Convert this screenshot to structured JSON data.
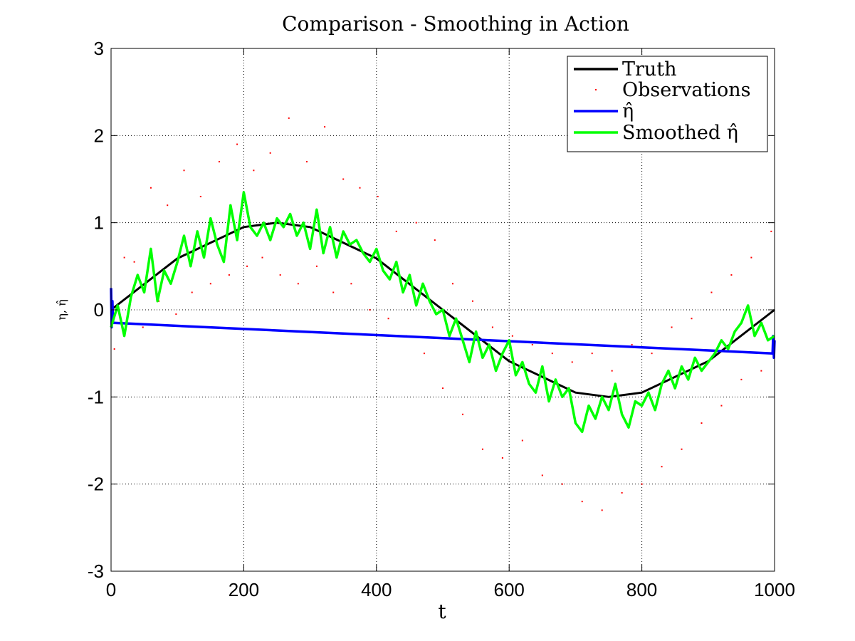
{
  "chart_data": {
    "type": "line",
    "title": "Comparison - Smoothing in Action",
    "xlabel": "t",
    "ylabel": "η, η̂",
    "xlim": [
      0,
      1000
    ],
    "ylim": [
      -3,
      3
    ],
    "xticks": [
      "0",
      "200",
      "400",
      "600",
      "800",
      "1000"
    ],
    "yticks": [
      "-3",
      "-2",
      "-1",
      "0",
      "1",
      "2",
      "3"
    ],
    "grid": true,
    "legend_position": "top-right",
    "series": [
      {
        "name": "Truth",
        "color": "#000000",
        "style": "line",
        "x": [
          0,
          100,
          200,
          250,
          300,
          400,
          500,
          600,
          700,
          750,
          800,
          900,
          1000
        ],
        "y": [
          0.0,
          0.59,
          0.95,
          1.0,
          0.95,
          0.59,
          0.0,
          -0.59,
          -0.95,
          -1.0,
          -0.95,
          -0.59,
          0.0
        ]
      },
      {
        "name": "Observations",
        "color": "#ff0000",
        "style": "dots",
        "x": [
          5,
          20,
          35,
          48,
          60,
          72,
          85,
          98,
          110,
          122,
          135,
          150,
          163,
          178,
          190,
          205,
          215,
          228,
          240,
          255,
          268,
          282,
          295,
          310,
          322,
          335,
          350,
          362,
          375,
          390,
          402,
          418,
          430,
          445,
          460,
          472,
          488,
          500,
          515,
          530,
          545,
          560,
          575,
          590,
          605,
          620,
          635,
          650,
          665,
          680,
          695,
          710,
          725,
          740,
          755,
          770,
          785,
          800,
          815,
          830,
          845,
          860,
          875,
          890,
          905,
          920,
          935,
          950,
          965,
          980,
          995
        ],
        "y": [
          -0.45,
          0.6,
          0.55,
          -0.2,
          1.4,
          0.1,
          1.2,
          -0.05,
          1.6,
          0.2,
          1.3,
          0.3,
          1.7,
          0.4,
          1.9,
          0.5,
          1.6,
          0.6,
          1.8,
          0.4,
          2.2,
          0.3,
          1.7,
          0.5,
          2.1,
          0.2,
          1.5,
          0.3,
          1.4,
          0.0,
          1.3,
          -0.1,
          0.9,
          -0.3,
          1.0,
          -0.5,
          0.8,
          -0.9,
          0.3,
          -1.2,
          0.1,
          -1.6,
          -0.2,
          -1.7,
          -0.3,
          -1.5,
          -0.4,
          -1.9,
          -0.5,
          -2.0,
          -0.6,
          -2.2,
          -0.5,
          -2.3,
          -0.7,
          -2.1,
          -0.4,
          -2.0,
          -0.5,
          -1.8,
          -0.2,
          -1.6,
          -0.1,
          -1.3,
          0.2,
          -1.1,
          0.4,
          -0.8,
          0.6,
          -0.7,
          0.9
        ]
      },
      {
        "name": "η̂",
        "color": "#0000ff",
        "style": "line",
        "x": [
          0,
          1,
          2,
          3,
          997,
          998,
          999,
          1000
        ],
        "y": [
          0.25,
          -0.2,
          0.1,
          -0.15,
          -0.5,
          -0.3,
          -0.55,
          -0.35
        ]
      },
      {
        "name": "Smoothed η̂",
        "color": "#00ff00",
        "style": "line",
        "x": [
          0,
          10,
          20,
          30,
          40,
          50,
          60,
          70,
          80,
          90,
          100,
          110,
          120,
          130,
          140,
          150,
          160,
          170,
          180,
          190,
          200,
          210,
          220,
          230,
          240,
          250,
          260,
          270,
          280,
          290,
          300,
          310,
          320,
          330,
          340,
          350,
          360,
          370,
          380,
          390,
          400,
          410,
          420,
          430,
          440,
          450,
          460,
          470,
          480,
          490,
          500,
          510,
          520,
          530,
          540,
          550,
          560,
          570,
          580,
          590,
          600,
          610,
          620,
          630,
          640,
          650,
          660,
          670,
          680,
          690,
          700,
          710,
          720,
          730,
          740,
          750,
          760,
          770,
          780,
          790,
          800,
          810,
          820,
          830,
          840,
          850,
          860,
          870,
          880,
          890,
          900,
          910,
          920,
          930,
          940,
          950,
          960,
          970,
          980,
          990,
          1000
        ],
        "y": [
          -0.2,
          0.05,
          -0.3,
          0.15,
          0.4,
          0.2,
          0.7,
          0.1,
          0.45,
          0.3,
          0.55,
          0.85,
          0.5,
          0.9,
          0.6,
          1.05,
          0.75,
          0.55,
          1.2,
          0.8,
          1.35,
          0.95,
          0.85,
          1.0,
          0.8,
          1.05,
          0.95,
          1.1,
          0.85,
          1.0,
          0.7,
          1.15,
          0.65,
          0.95,
          0.6,
          0.9,
          0.75,
          0.8,
          0.65,
          0.55,
          0.7,
          0.45,
          0.35,
          0.55,
          0.2,
          0.4,
          0.05,
          0.3,
          0.1,
          -0.05,
          0.0,
          -0.3,
          -0.1,
          -0.35,
          -0.6,
          -0.25,
          -0.55,
          -0.4,
          -0.7,
          -0.5,
          -0.35,
          -0.75,
          -0.6,
          -0.85,
          -0.95,
          -0.65,
          -1.05,
          -0.8,
          -1.0,
          -0.9,
          -1.3,
          -1.4,
          -1.1,
          -1.25,
          -1.0,
          -1.15,
          -0.85,
          -1.2,
          -1.35,
          -1.05,
          -1.1,
          -0.95,
          -1.15,
          -0.85,
          -0.7,
          -0.9,
          -0.65,
          -0.8,
          -0.55,
          -0.7,
          -0.6,
          -0.5,
          -0.35,
          -0.45,
          -0.25,
          -0.15,
          0.05,
          -0.3,
          -0.15,
          -0.35,
          -0.3
        ]
      }
    ]
  }
}
